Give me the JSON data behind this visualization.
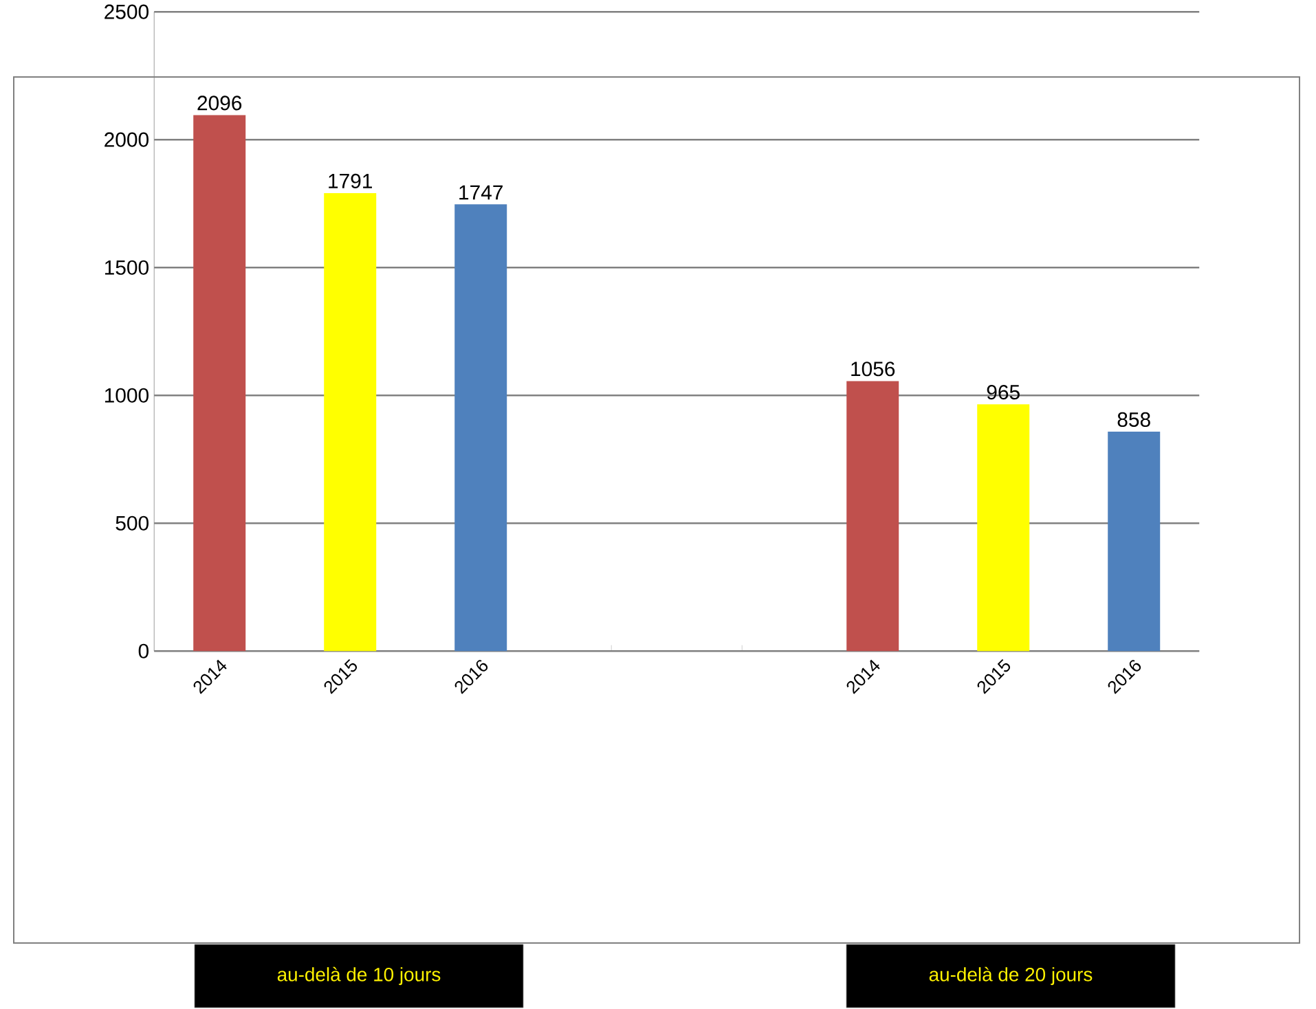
{
  "chart_data": {
    "type": "bar",
    "categories": [
      "2014",
      "2015",
      "2016",
      null,
      null,
      "2014",
      "2015",
      "2016"
    ],
    "values": [
      2096,
      1791,
      1747,
      null,
      null,
      1056,
      965,
      858
    ],
    "colors": [
      "#c0504d",
      "#ffff00",
      "#4f81bd",
      null,
      null,
      "#c0504d",
      "#ffff00",
      "#4f81bd"
    ],
    "ylim": [
      0,
      2500
    ],
    "yticks": [
      0,
      500,
      1000,
      1500,
      2000,
      2500
    ],
    "grid": "y",
    "data_labels": true,
    "annotations": [
      "au-delà de 10 jours",
      "au-delà de 20 jours"
    ]
  }
}
